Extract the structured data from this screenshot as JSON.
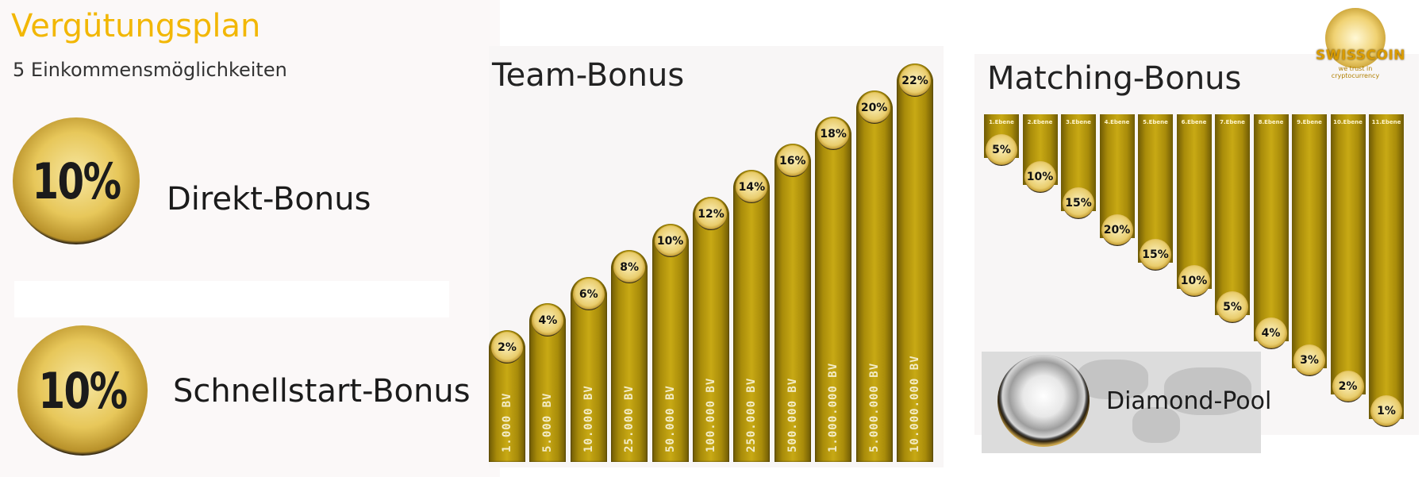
{
  "header": {
    "title": "Vergütungsplan",
    "subtitle": "5 Einkommensmöglichkeiten"
  },
  "direct_bonus": {
    "coin_text": "10%",
    "label": "Direkt-Bonus"
  },
  "quickstart_bonus": {
    "coin_text": "10%",
    "label": "Schnellstart-Bonus"
  },
  "logo": {
    "name": "SWISSCOIN",
    "slogan": "we trust in cryptocurrency"
  },
  "diamond_pool": {
    "label": "Diamond-Pool"
  },
  "colors": {
    "title": "#f2b705",
    "gold_bar": "#c8a914",
    "text": "#1b1b1b"
  },
  "chart_data": [
    {
      "type": "bar",
      "title": "Team-Bonus",
      "categories": [
        "1.000 BV",
        "5.000 BV",
        "10.000 BV",
        "25.000 BV",
        "50.000 BV",
        "100.000 BV",
        "250.000 BV",
        "500.000 BV",
        "1.000.000 BV",
        "5.000.000 BV",
        "10.000.000 BV"
      ],
      "values": [
        2,
        4,
        6,
        8,
        10,
        12,
        14,
        16,
        18,
        20,
        22
      ],
      "value_labels": [
        "2%",
        "4%",
        "6%",
        "8%",
        "10%",
        "12%",
        "14%",
        "16%",
        "18%",
        "20%",
        "22%"
      ],
      "unit": "%"
    },
    {
      "type": "bar",
      "title": "Matching-Bonus",
      "categories": [
        "1.Ebene",
        "2.Ebene",
        "3.Ebene",
        "4.Ebene",
        "5.Ebene",
        "6.Ebene",
        "7.Ebene",
        "8.Ebene",
        "9.Ebene",
        "10.Ebene",
        "11.Ebene"
      ],
      "values": [
        5,
        10,
        15,
        20,
        15,
        10,
        5,
        4,
        3,
        2,
        1
      ],
      "value_labels": [
        "5%",
        "10%",
        "15%",
        "20%",
        "15%",
        "10%",
        "5%",
        "4%",
        "3%",
        "2%",
        "1%"
      ],
      "unit": "%"
    }
  ]
}
